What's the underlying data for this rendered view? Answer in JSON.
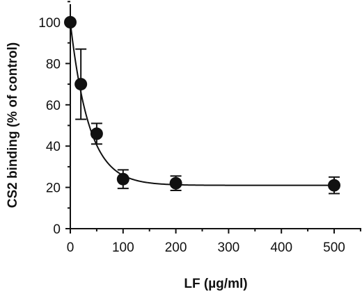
{
  "chart_data": {
    "type": "scatter",
    "title": "",
    "xlabel": "LF (µg/ml)",
    "ylabel": "CS2 binding (% of control)",
    "xlim": [
      0,
      525
    ],
    "ylim": [
      0,
      110
    ],
    "x_ticks": [
      0,
      100,
      200,
      300,
      400,
      500
    ],
    "y_ticks": [
      0,
      20,
      40,
      60,
      80,
      100
    ],
    "grid": false,
    "legend": "none",
    "fit_curve": true,
    "series": [
      {
        "x": [
          0,
          20,
          50,
          100,
          200,
          500
        ],
        "y": [
          100,
          70,
          46,
          24,
          22,
          21
        ],
        "error": [
          0,
          17,
          5,
          4.5,
          3.5,
          4
        ]
      }
    ]
  }
}
